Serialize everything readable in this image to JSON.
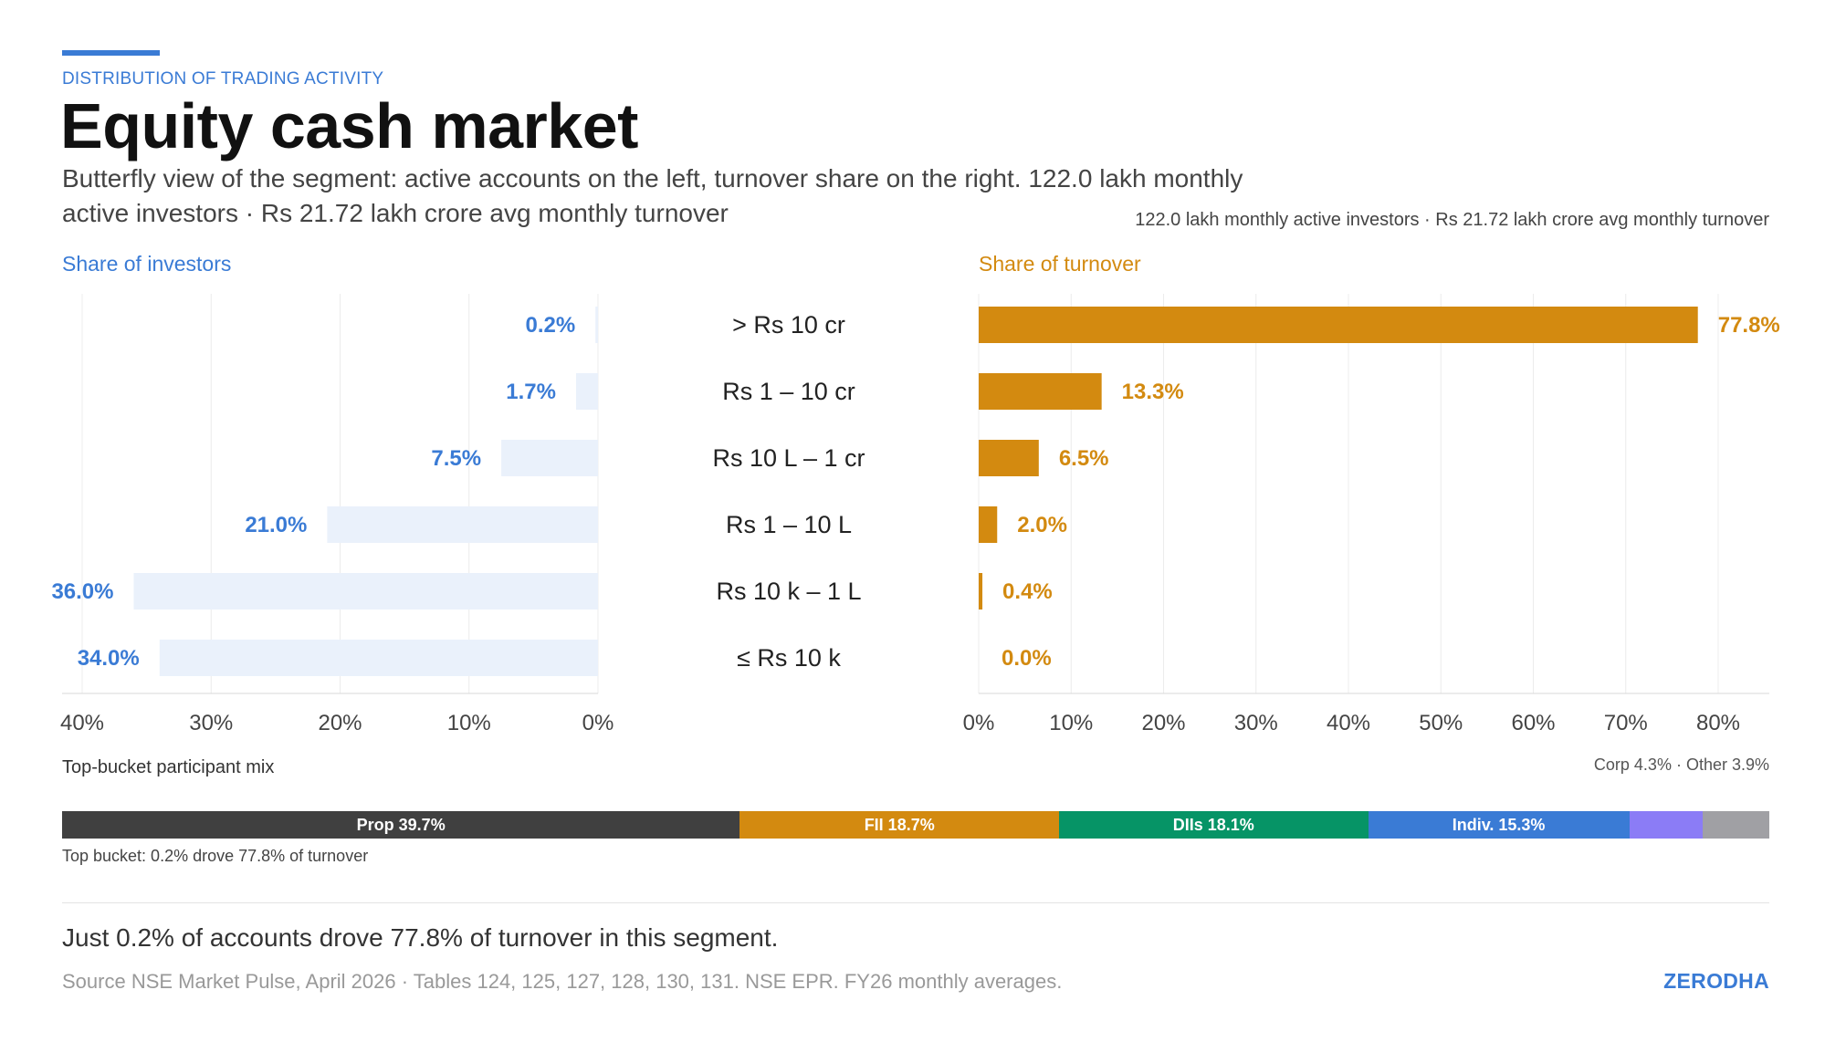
{
  "header": {
    "kicker": "DISTRIBUTION OF TRADING ACTIVITY",
    "title": "Equity cash market",
    "subtitle": "Butterfly view of the segment: active accounts on the left, turnover share on the right. 122.0 lakh monthly active investors · Rs 21.72 lakh crore avg monthly turnover",
    "right_note": "122.0 lakh monthly active investors · Rs 21.72 lakh crore avg monthly turnover"
  },
  "colors": {
    "investors": "#3a7bd5",
    "investors_bar": "#eaf1fb",
    "turnover": "#d38a10",
    "grid": "#ececec"
  },
  "chart_data": {
    "type": "bar",
    "layout": "butterfly",
    "categories": [
      "> Rs 10 cr",
      "Rs 1 – 10 cr",
      "Rs 10 L – 1 cr",
      "Rs 1 – 10 L",
      "Rs 10 k – 1 L",
      "≤ Rs 10 k"
    ],
    "series": [
      {
        "name": "Share of investors",
        "values": [
          0.2,
          1.7,
          7.5,
          21.0,
          36.0,
          34.0
        ],
        "labels": [
          "0.2%",
          "1.7%",
          "7.5%",
          "21.0%",
          "36.0%",
          "34.0%"
        ],
        "axis_max": 40,
        "ticks": [
          40,
          30,
          20,
          10,
          0
        ],
        "tick_labels": [
          "40%",
          "30%",
          "20%",
          "10%",
          "0%"
        ]
      },
      {
        "name": "Share of turnover",
        "values": [
          77.8,
          13.3,
          6.5,
          2.0,
          0.4,
          0.0
        ],
        "labels": [
          "77.8%",
          "13.3%",
          "6.5%",
          "2.0%",
          "0.4%",
          "0.0%"
        ],
        "axis_max": 85,
        "ticks": [
          0,
          10,
          20,
          30,
          40,
          50,
          60,
          70,
          80
        ],
        "tick_labels": [
          "0%",
          "10%",
          "20%",
          "30%",
          "40%",
          "50%",
          "60%",
          "70%",
          "80%"
        ]
      }
    ]
  },
  "participant_mix": {
    "label": "Top-bucket participant mix",
    "note": "Corp 4.3% · Other 3.9%",
    "segments": [
      {
        "name": "Prop",
        "value": 39.7,
        "label": "Prop 39.7%",
        "color": "#404040"
      },
      {
        "name": "FII",
        "value": 18.7,
        "label": "FII 18.7%",
        "color": "#d38a10"
      },
      {
        "name": "DIIs",
        "value": 18.1,
        "label": "DIIs 18.1%",
        "color": "#069466"
      },
      {
        "name": "Indiv.",
        "value": 15.3,
        "label": "Indiv. 15.3%",
        "color": "#3a7bd5"
      },
      {
        "name": "Corp",
        "value": 4.3,
        "label": "",
        "color": "#8b7cf6"
      },
      {
        "name": "Other",
        "value": 3.9,
        "label": "",
        "color": "#a0a0a4"
      }
    ],
    "top_bucket_note": "Top bucket: 0.2% drove 77.8% of turnover"
  },
  "footer": {
    "takeaway": "Just 0.2% of accounts drove 77.8% of turnover in this segment.",
    "source": "Source NSE Market Pulse, April 2026 · Tables 124, 125, 127, 128, 130, 131. NSE EPR. FY26 monthly averages.",
    "brand": "ZERODHA"
  },
  "panels": {
    "investors_label": "Share of investors",
    "turnover_label": "Share of turnover"
  }
}
